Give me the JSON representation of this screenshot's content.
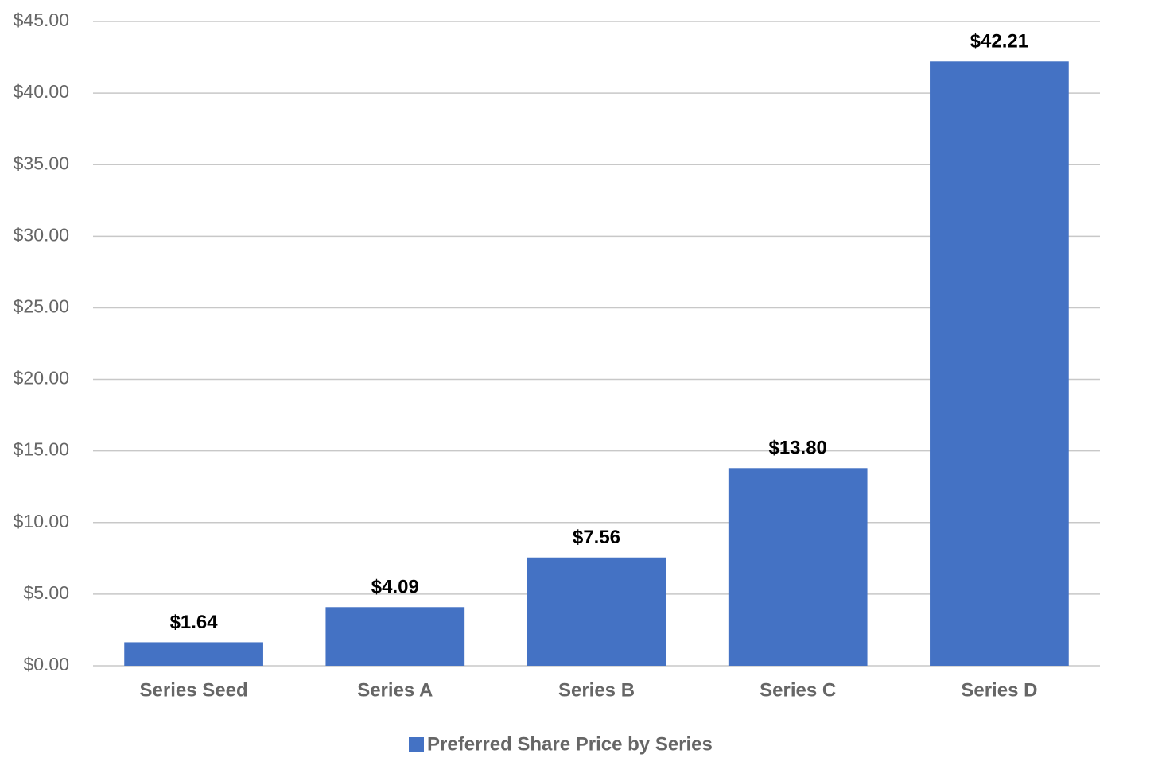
{
  "chart_data": {
    "type": "bar",
    "categories": [
      "Series Seed",
      "Series A",
      "Series B",
      "Series C",
      "Series D"
    ],
    "series": [
      {
        "name": "Preferred Share Price by Series",
        "color": "#4472c4",
        "values": [
          1.64,
          4.09,
          7.56,
          13.8,
          42.21
        ],
        "value_labels": [
          "$1.64",
          "$4.09",
          "$7.56",
          "$13.80",
          "$42.21"
        ]
      }
    ],
    "ylim": [
      0,
      45
    ],
    "yticks": [
      {
        "value": 0,
        "label": "$0.00"
      },
      {
        "value": 5,
        "label": "$5.00"
      },
      {
        "value": 10,
        "label": "$10.00"
      },
      {
        "value": 15,
        "label": "$15.00"
      },
      {
        "value": 20,
        "label": "$20.00"
      },
      {
        "value": 25,
        "label": "$25.00"
      },
      {
        "value": 30,
        "label": "$30.00"
      },
      {
        "value": 35,
        "label": "$35.00"
      },
      {
        "value": 40,
        "label": "$40.00"
      },
      {
        "value": 45,
        "label": "$45.00"
      }
    ],
    "grid": true,
    "legend": "bottom"
  }
}
